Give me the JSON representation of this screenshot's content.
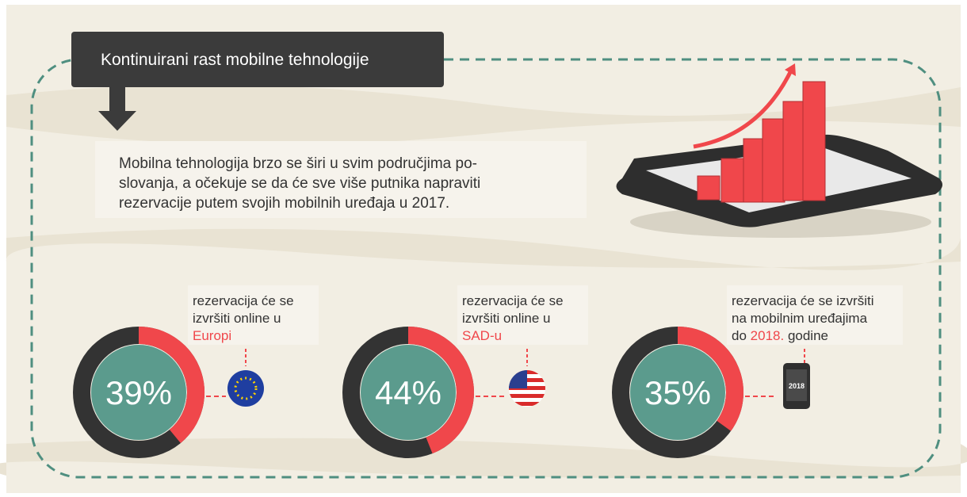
{
  "header": {
    "title": "Kontinuirani rast mobilne tehnologije"
  },
  "intro": {
    "lines": [
      "Mobilna tehnologija brzo se širi u svim područjima po-",
      "slovanja, a očekuje se da će sve više putnika napraviti",
      "rezervacije putem svojih mobilnih uređaja u 2017."
    ]
  },
  "stats": [
    {
      "value": 39,
      "value_label": "39%",
      "lines": [
        "rezervacija će se",
        "izvršiti online u"
      ],
      "highlight": "Europi"
    },
    {
      "value": 44,
      "value_label": "44%",
      "lines": [
        "rezervacija će se",
        "izvršiti online u"
      ],
      "highlight": "SAD-u"
    },
    {
      "value": 35,
      "value_label": "35%",
      "lines": [
        "rezervacija će se izvršiti",
        "na mobilnim uređajima"
      ],
      "prefix": "do",
      "highlight": "2018.",
      "suffix": "godine",
      "icon_label": "2018"
    }
  ]
}
